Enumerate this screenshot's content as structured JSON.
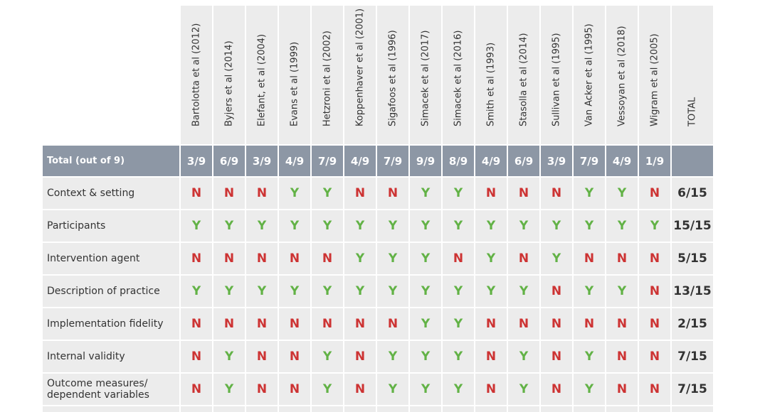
{
  "colors": {
    "yes": "#62b246",
    "no": "#cd3333",
    "total_row_bg": "#8d97a5",
    "cell_bg": "#ececec"
  },
  "table": {
    "studies": [
      "Bartolotta et al (2012)",
      "Byjers et al (2014)",
      "Elefant, et al (2004)",
      "Evans et al (1999)",
      "Hetzroni et al (2002)",
      "Koppenhaver et al (2001)",
      "Sigafoos et al (1996)",
      "Simacek et al (2017)",
      "Simacek et al (2016)",
      "Smith et al (1993)",
      "Stasolla et al (2014)",
      "Sullivan et al (1995)",
      "Van Acker et al (1995)",
      "Vessoyan et al (2018)",
      "Wigram et al (2005)"
    ],
    "total_header": "TOTAL",
    "total_row": {
      "label": "Total (out of 9)",
      "values": [
        "3/9",
        "6/9",
        "3/9",
        "4/9",
        "7/9",
        "4/9",
        "7/9",
        "9/9",
        "8/9",
        "4/9",
        "6/9",
        "3/9",
        "7/9",
        "4/9",
        "1/9"
      ]
    },
    "rows": [
      {
        "label": "Context & setting",
        "values": [
          "N",
          "N",
          "N",
          "Y",
          "Y",
          "N",
          "N",
          "Y",
          "Y",
          "N",
          "N",
          "N",
          "Y",
          "Y",
          "N"
        ],
        "total": "6/15"
      },
      {
        "label": "Participants",
        "values": [
          "Y",
          "Y",
          "Y",
          "Y",
          "Y",
          "Y",
          "Y",
          "Y",
          "Y",
          "Y",
          "Y",
          "Y",
          "Y",
          "Y",
          "Y"
        ],
        "total": "15/15"
      },
      {
        "label": "Intervention agent",
        "values": [
          "N",
          "N",
          "N",
          "N",
          "N",
          "Y",
          "Y",
          "Y",
          "N",
          "Y",
          "N",
          "Y",
          "N",
          "N",
          "N"
        ],
        "total": "5/15"
      },
      {
        "label": "Description of practice",
        "values": [
          "Y",
          "Y",
          "Y",
          "Y",
          "Y",
          "Y",
          "Y",
          "Y",
          "Y",
          "Y",
          "Y",
          "N",
          "Y",
          "Y",
          "N"
        ],
        "total": "13/15"
      },
      {
        "label": "Implementation fidelity",
        "values": [
          "N",
          "N",
          "N",
          "N",
          "N",
          "N",
          "N",
          "Y",
          "Y",
          "N",
          "N",
          "N",
          "N",
          "N",
          "N"
        ],
        "total": "2/15"
      },
      {
        "label": "Internal validity",
        "values": [
          "N",
          "Y",
          "N",
          "N",
          "Y",
          "N",
          "Y",
          "Y",
          "Y",
          "N",
          "Y",
          "N",
          "Y",
          "N",
          "N"
        ],
        "total": "7/15"
      },
      {
        "label": "Outcome measures/ dependent variables",
        "values": [
          "N",
          "Y",
          "N",
          "N",
          "Y",
          "N",
          "Y",
          "Y",
          "Y",
          "N",
          "Y",
          "N",
          "Y",
          "N",
          "N"
        ],
        "total": "7/15"
      }
    ]
  }
}
